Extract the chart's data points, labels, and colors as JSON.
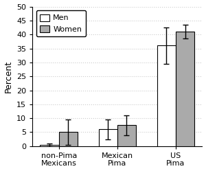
{
  "categories": [
    "non-Pima\nMexicans",
    "Mexican\nPima",
    "US\nPima"
  ],
  "men_values": [
    0.5,
    6.0,
    36.0
  ],
  "women_values": [
    5.0,
    7.5,
    41.0
  ],
  "men_errors": [
    0.5,
    3.5,
    6.5
  ],
  "women_errors": [
    4.5,
    3.5,
    2.5
  ],
  "men_color": "#ffffff",
  "women_color": "#aaaaaa",
  "bar_edgecolor": "#000000",
  "ylabel": "Percent",
  "ylim": [
    0,
    50
  ],
  "yticks": [
    0,
    5,
    10,
    15,
    20,
    25,
    30,
    35,
    40,
    45,
    50
  ],
  "legend_labels": [
    "Men",
    "Women"
  ],
  "grid_color": "#cccccc",
  "background_color": "#ffffff",
  "bar_width": 0.32,
  "figsize": [
    3.0,
    2.49
  ],
  "dpi": 100,
  "capsize": 3,
  "elinewidth": 1.0,
  "ecolor": "#000000"
}
